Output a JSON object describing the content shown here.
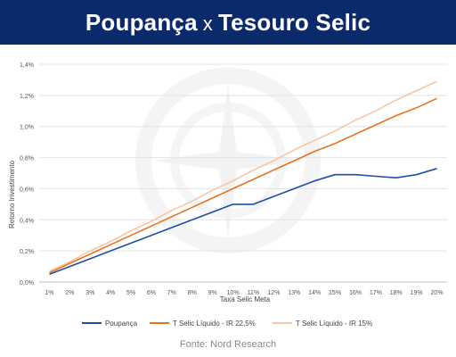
{
  "header": {
    "title_left": "Poupança",
    "title_sep": "x",
    "title_right": "Tesouro Selic",
    "background": "#0b2a6b"
  },
  "source": "Fonte: Nord Research",
  "chart_data": {
    "type": "line",
    "title": "",
    "xlabel": "Taxa Selic Meta",
    "ylabel": "Retorno Investimento",
    "categories": [
      "1%",
      "2%",
      "3%",
      "4%",
      "5%",
      "6%",
      "7%",
      "8%",
      "9%",
      "10%",
      "11%",
      "12%",
      "13%",
      "14%",
      "15%",
      "16%",
      "17%",
      "18%",
      "19%",
      "20%"
    ],
    "yticks": [
      "0,0%",
      "0,2%",
      "0,4%",
      "0,6%",
      "0,8%",
      "1,0%",
      "1,2%",
      "1,4%"
    ],
    "ylim": [
      0,
      1.4
    ],
    "grid": true,
    "legend_position": "bottom",
    "series": [
      {
        "name": "Poupança",
        "color": "#1f4ea3",
        "values": [
          0.05,
          0.1,
          0.15,
          0.2,
          0.25,
          0.3,
          0.35,
          0.4,
          0.45,
          0.5,
          0.5,
          0.55,
          0.6,
          0.65,
          0.69,
          0.69,
          0.68,
          0.67,
          0.69,
          0.73
        ]
      },
      {
        "name": "T Selic Líquido - IR 22,5%",
        "color": "#e8731e",
        "values": [
          0.06,
          0.12,
          0.18,
          0.24,
          0.3,
          0.36,
          0.42,
          0.48,
          0.54,
          0.6,
          0.66,
          0.72,
          0.78,
          0.84,
          0.89,
          0.95,
          1.01,
          1.07,
          1.12,
          1.18
        ]
      },
      {
        "name": "T Selic Líquido - IR 15%",
        "color": "#f7c6a4",
        "values": [
          0.07,
          0.13,
          0.2,
          0.26,
          0.33,
          0.39,
          0.46,
          0.52,
          0.59,
          0.65,
          0.72,
          0.78,
          0.85,
          0.91,
          0.97,
          1.04,
          1.1,
          1.17,
          1.23,
          1.29
        ]
      }
    ]
  }
}
